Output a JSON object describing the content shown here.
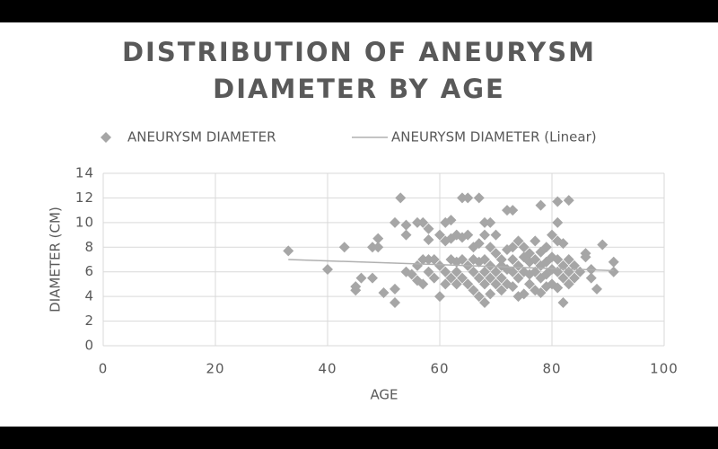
{
  "chart_data": {
    "type": "scatter",
    "title": [
      "DISTRIBUTION OF ANEURYSM",
      "DIAMETER BY AGE"
    ],
    "x_label": "AGE",
    "y_label": "DIAMETER (CM)",
    "xlim": [
      0,
      100
    ],
    "xticks": [
      0,
      20,
      40,
      60,
      80,
      100
    ],
    "ylim": [
      0,
      14
    ],
    "yticks": [
      0,
      2,
      4,
      6,
      8,
      10,
      12,
      14
    ],
    "grid": true,
    "legend": "top",
    "series": [
      {
        "name": "ANEURYSM DIAMETER",
        "color": "#a6a6a6",
        "marker": "diamond",
        "x": [
          33,
          40,
          43,
          45,
          45,
          46,
          48,
          48,
          49,
          49,
          50,
          52,
          52,
          52,
          53,
          54,
          54,
          54,
          55,
          56,
          56,
          56,
          57,
          57,
          57,
          58,
          58,
          58,
          58,
          59,
          59,
          60,
          60,
          60,
          61,
          61,
          61,
          61,
          62,
          62,
          62,
          62,
          63,
          63,
          63,
          63,
          64,
          64,
          64,
          64,
          65,
          65,
          65,
          65,
          66,
          66,
          66,
          66,
          67,
          67,
          67,
          67,
          67,
          68,
          68,
          68,
          68,
          68,
          68,
          69,
          69,
          69,
          69,
          69,
          70,
          70,
          70,
          70,
          71,
          71,
          71,
          71,
          72,
          72,
          72,
          72,
          73,
          73,
          73,
          73,
          73,
          74,
          74,
          74,
          74,
          75,
          75,
          75,
          75,
          76,
          76,
          76,
          76,
          77,
          77,
          77,
          77,
          78,
          78,
          78,
          78,
          78,
          79,
          79,
          79,
          79,
          80,
          80,
          80,
          80,
          81,
          81,
          81,
          81,
          81,
          81,
          82,
          82,
          82,
          82,
          83,
          83,
          83,
          83,
          84,
          84,
          85,
          86,
          86,
          87,
          87,
          88,
          89,
          91,
          91
        ],
        "values": [
          7.7,
          6.2,
          8,
          4.8,
          4.5,
          5.5,
          5.5,
          8,
          8.7,
          8,
          4.3,
          10,
          4.6,
          3.5,
          12,
          9.8,
          9,
          6,
          5.8,
          10,
          6.5,
          5.3,
          10,
          7,
          5,
          9.5,
          8.6,
          7,
          6,
          7,
          5.5,
          9,
          6.5,
          4,
          10,
          8.5,
          6,
          5,
          10.2,
          8.7,
          7,
          5.5,
          9,
          6.8,
          6,
          5,
          12,
          8.8,
          7,
          5.5,
          12,
          9,
          6.5,
          5,
          8,
          7,
          6,
          4.5,
          12,
          8.3,
          6.8,
          5.5,
          4,
          10,
          9,
          7,
          6,
          5,
          3.5,
          10,
          8,
          6.5,
          5.5,
          4.2,
          9,
          7.5,
          6,
          5,
          7,
          6.5,
          5.5,
          4.5,
          11,
          7.8,
          6.2,
          5,
          11,
          8,
          7,
          6,
          4.8,
          8.5,
          6.5,
          5.5,
          4,
          8,
          7.2,
          6,
          4.2,
          7.5,
          6.8,
          5.8,
          5,
          8.5,
          7,
          6,
          4.5,
          11.4,
          7.6,
          6.5,
          5.5,
          4.3,
          8,
          6.8,
          5.8,
          4.8,
          9,
          7.2,
          6.2,
          5,
          11.7,
          10,
          8.5,
          7,
          6,
          4.7,
          8.3,
          6.5,
          5.5,
          3.5,
          11.8,
          7,
          6,
          5,
          6.5,
          5.5,
          6,
          7.5,
          7.2,
          6.2,
          5.5,
          4.6,
          8.2,
          6.8,
          6
        ]
      },
      {
        "name": "ANEURYSM DIAMETER (Linear)",
        "color": "#b0b0b0",
        "marker": "line",
        "x": [
          33,
          91
        ],
        "values": [
          7.0,
          6.1
        ]
      }
    ]
  }
}
